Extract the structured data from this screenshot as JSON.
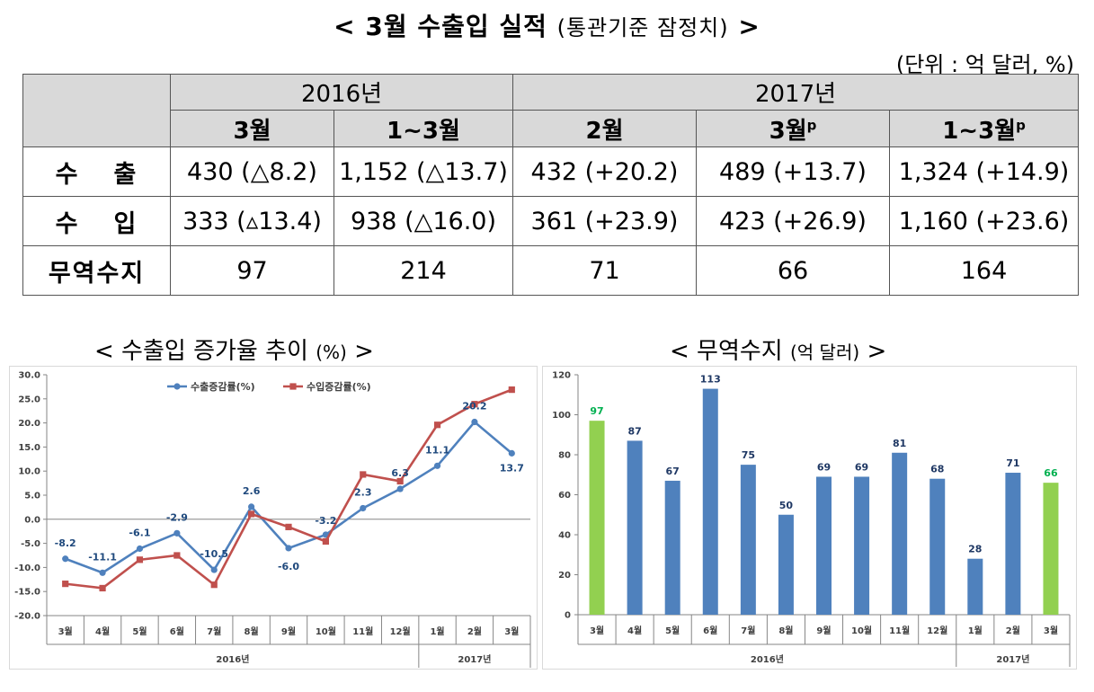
{
  "header": {
    "title_main": "< 3월 수출입 실적",
    "title_sub": "(통관기준 잠정치)",
    "title_end": ">",
    "unit": "(단위 : 억 달러, %)"
  },
  "table": {
    "year_2016": "2016년",
    "year_2017": "2017년",
    "columns": [
      {
        "label": "3월",
        "sup": ""
      },
      {
        "label": "1~3월",
        "sup": ""
      },
      {
        "label": "2월",
        "sup": ""
      },
      {
        "label": "3월",
        "sup": "p"
      },
      {
        "label": "1~3월",
        "sup": "p"
      }
    ],
    "rows": [
      {
        "label_a": "수",
        "label_b": "출",
        "cells": [
          "430 (△8.2)",
          "1,152 (△13.7)",
          "432 (+20.2)",
          "489 (+13.7)",
          "1,324 (+14.9)"
        ]
      },
      {
        "label_a": "수",
        "label_b": "입",
        "cells": [
          "333 (▵13.4)",
          "938 (△16.0)",
          "361 (+23.9)",
          "423 (+26.9)",
          "1,160 (+23.6)"
        ]
      },
      {
        "label_a": "무역수지",
        "label_b": "",
        "cells": [
          "97",
          "214",
          "71",
          "66",
          "164"
        ]
      }
    ]
  },
  "left_chart_title": {
    "main": "< 수출입 증가율 추이",
    "paren": "(%)",
    "end": ">"
  },
  "right_chart_title": {
    "main": "< 무역수지",
    "paren": "(억 달러)",
    "end": ">"
  },
  "chart_data": [
    {
      "type": "line",
      "x": [
        "3월",
        "4월",
        "5월",
        "6월",
        "7월",
        "8월",
        "9월",
        "10월",
        "11월",
        "12월",
        "1월",
        "2월",
        "3월"
      ],
      "groups": [
        {
          "label": "2016년",
          "from": 0,
          "to": 9
        },
        {
          "label": "2017년",
          "from": 10,
          "to": 12
        }
      ],
      "series": [
        {
          "name": "수출증감률(%)",
          "color": "#4f81bd",
          "marker": "circle",
          "values": [
            -8.2,
            -11.1,
            -6.1,
            -2.9,
            -10.5,
            2.6,
            -6.0,
            -3.2,
            2.3,
            6.3,
            11.1,
            20.2,
            13.7
          ],
          "labels": [
            "-8.2",
            "-11.1",
            "-6.1",
            "-2.9",
            "-10.5",
            "2.6",
            "-6.0",
            "-3.2",
            "2.3",
            "6.3",
            "11.1",
            "20.2",
            "13.7"
          ]
        },
        {
          "name": "수입증감률(%)",
          "color": "#c0504d",
          "marker": "square",
          "values": [
            -13.4,
            -14.3,
            -8.4,
            -7.5,
            -13.6,
            1.1,
            -1.6,
            -4.6,
            9.3,
            7.9,
            19.6,
            23.9,
            26.9
          ]
        }
      ],
      "ylim": [
        -20,
        30
      ],
      "yticks": [
        "-20.0",
        "-15.0",
        "-10.0",
        "-5.0",
        "0.0",
        "5.0",
        "10.0",
        "15.0",
        "20.0",
        "25.0",
        "30.0"
      ],
      "grid": false,
      "legend": "top"
    },
    {
      "type": "bar",
      "categories": [
        "3월",
        "4월",
        "5월",
        "6월",
        "7월",
        "8월",
        "9월",
        "10월",
        "11월",
        "12월",
        "1월",
        "2월",
        "3월"
      ],
      "groups": [
        {
          "label": "2016년",
          "from": 0,
          "to": 9
        },
        {
          "label": "2017년",
          "from": 10,
          "to": 12
        }
      ],
      "values": [
        97,
        87,
        67,
        113,
        75,
        50,
        69,
        69,
        81,
        68,
        28,
        71,
        66
      ],
      "highlight_indices": [
        0,
        12
      ],
      "colors": {
        "normal": "#4f81bd",
        "highlight": "#92d050",
        "label_normal": "#1f3864",
        "label_highlight": "#00b050"
      },
      "ylim": [
        0,
        120
      ],
      "yticks": [
        "0",
        "20",
        "40",
        "60",
        "80",
        "100",
        "120"
      ]
    }
  ]
}
